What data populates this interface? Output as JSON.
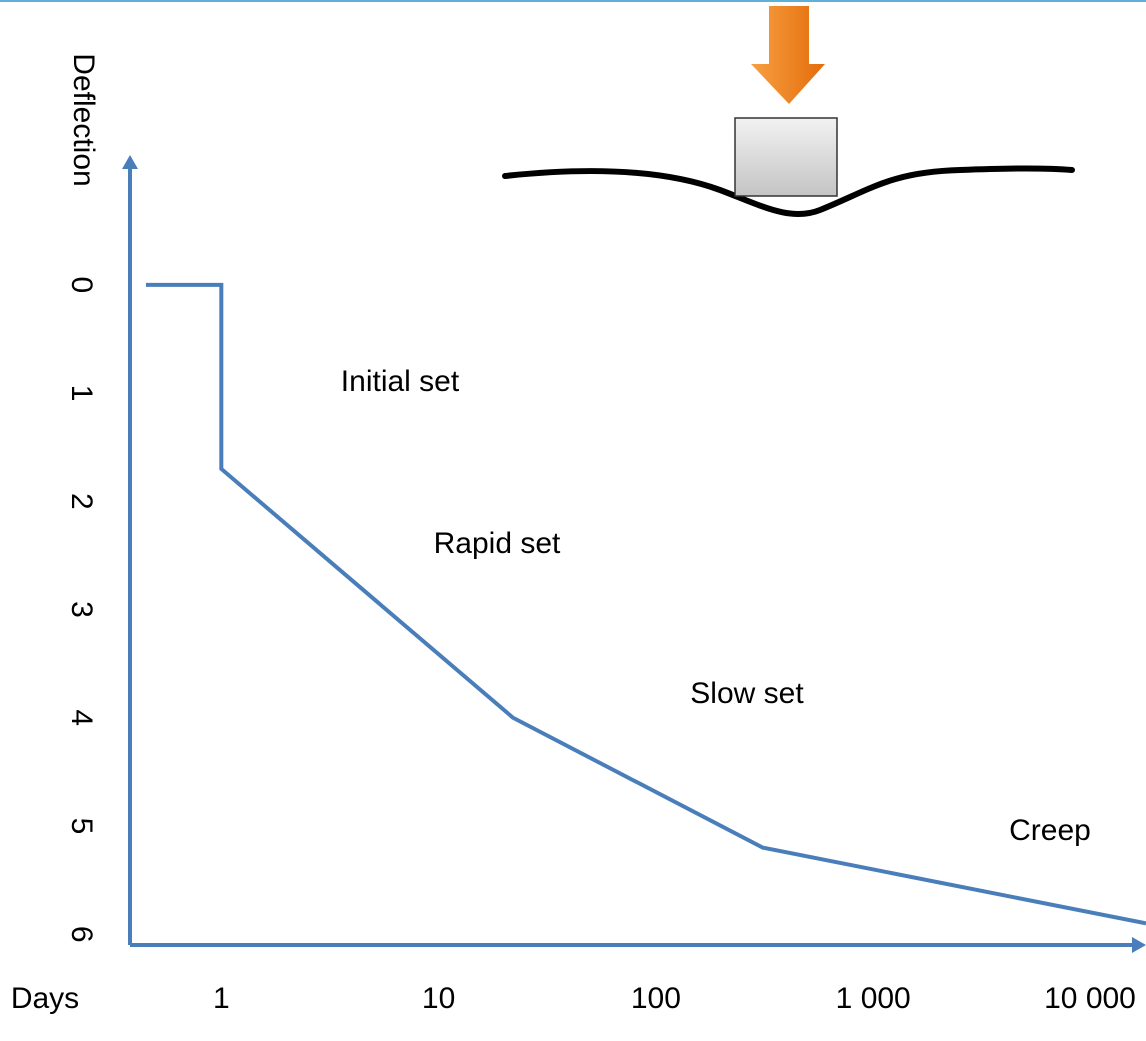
{
  "chart_data": {
    "type": "line",
    "y_label": "Deflection",
    "x_label": "Days",
    "x": [
      0.45,
      1,
      1,
      22,
      310,
      18000
    ],
    "series": [
      {
        "color": "#4a7ebb",
        "values": [
          0,
          0,
          1.7,
          4.0,
          5.2,
          5.9
        ]
      }
    ],
    "xlim": [
      0.38,
      18000
    ],
    "log_x": true,
    "xticks": [
      1,
      10,
      100,
      {
        "value": 1000,
        "label": "1 000"
      },
      {
        "value": 10000,
        "label": "10 000"
      }
    ],
    "ylim": [
      -1.2,
      6.1
    ],
    "y_inverted": true,
    "yticks": [
      0,
      1,
      2,
      3,
      4,
      5,
      6
    ],
    "grid": false,
    "annotations": [
      "Initial set",
      "Rapid set",
      "Slow set",
      "Creep"
    ]
  }
}
